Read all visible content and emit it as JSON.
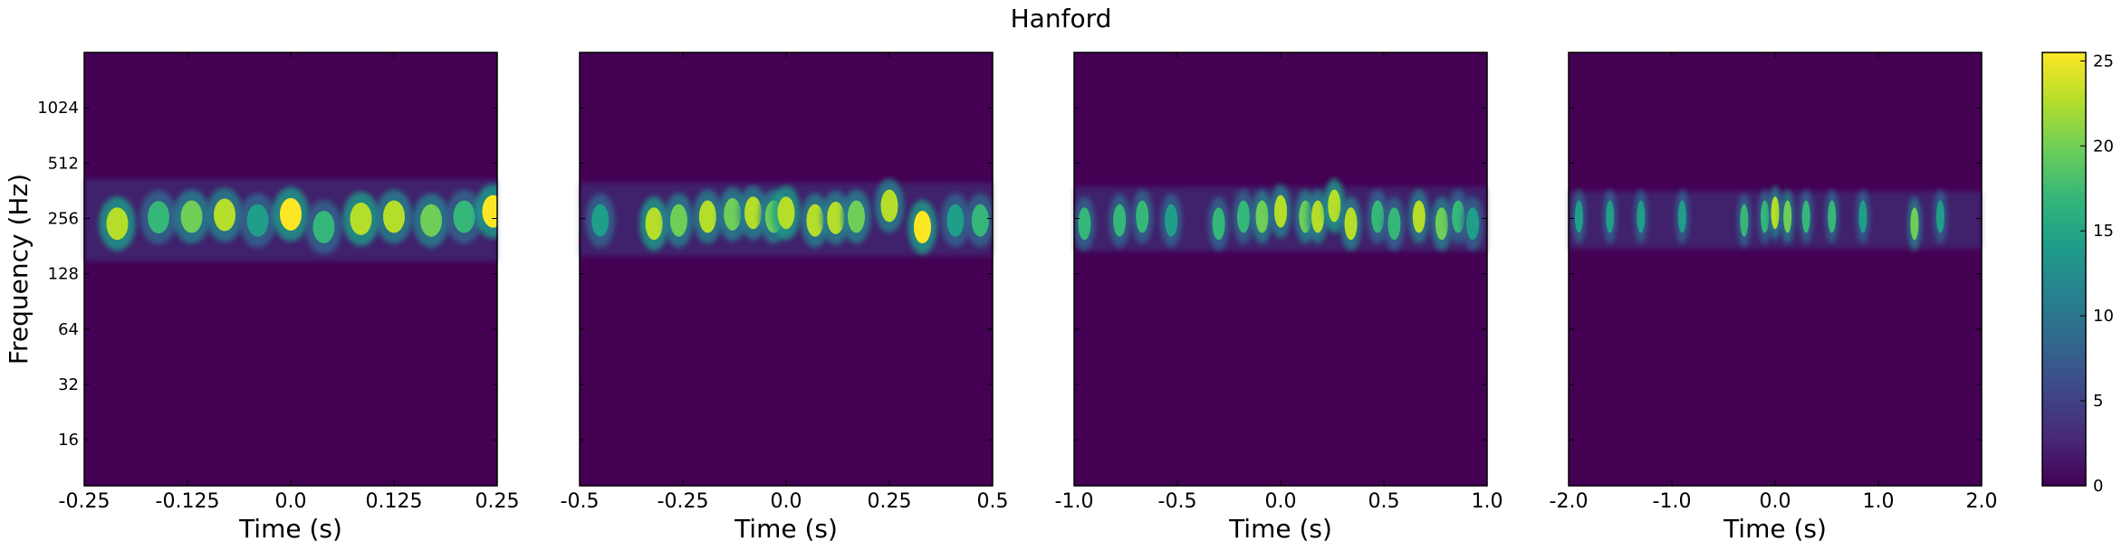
{
  "chart_data": {
    "type": "heatmap",
    "title": "Hanford",
    "ylabel": "Frequency (Hz)",
    "yscale": "log2",
    "ylim": [
      9,
      2048
    ],
    "yticks": [
      16,
      32,
      64,
      128,
      256,
      512,
      1024
    ],
    "colormap": [
      "#440154",
      "#482878",
      "#3e4989",
      "#31688e",
      "#26828e",
      "#1f9e89",
      "#35b779",
      "#6ece58",
      "#b5de2b",
      "#fde725"
    ],
    "colorbar": {
      "ticks": [
        0,
        5,
        10,
        15,
        20,
        25
      ],
      "range": [
        0,
        25.5
      ]
    },
    "panels": [
      {
        "xlabel": "Time (s)",
        "xlim": [
          -0.25,
          0.25
        ],
        "xticks": [
          "-0.25",
          "-0.125",
          "0.0",
          "0.125",
          "0.25"
        ],
        "band_hz": [
          150,
          420
        ],
        "peaks": [
          {
            "t": -0.21,
            "f": 240,
            "v": 24
          },
          {
            "t": -0.16,
            "f": 260,
            "v": 16
          },
          {
            "t": -0.12,
            "f": 262,
            "v": 20
          },
          {
            "t": -0.08,
            "f": 268,
            "v": 23
          },
          {
            "t": -0.04,
            "f": 250,
            "v": 14
          },
          {
            "t": 0.0,
            "f": 270,
            "v": 25
          },
          {
            "t": 0.04,
            "f": 230,
            "v": 16
          },
          {
            "t": 0.085,
            "f": 255,
            "v": 24
          },
          {
            "t": 0.125,
            "f": 262,
            "v": 23
          },
          {
            "t": 0.17,
            "f": 250,
            "v": 20
          },
          {
            "t": 0.21,
            "f": 262,
            "v": 16
          },
          {
            "t": 0.245,
            "f": 280,
            "v": 25
          }
        ]
      },
      {
        "xlabel": "Time (s)",
        "xlim": [
          -0.5,
          0.5
        ],
        "xticks": [
          "-0.5",
          "-0.25",
          "0.0",
          "0.25",
          "0.5"
        ],
        "band_hz": [
          160,
          400
        ],
        "peaks": [
          {
            "t": -0.45,
            "f": 250,
            "v": 14
          },
          {
            "t": -0.32,
            "f": 240,
            "v": 24
          },
          {
            "t": -0.26,
            "f": 250,
            "v": 20
          },
          {
            "t": -0.19,
            "f": 262,
            "v": 22
          },
          {
            "t": -0.13,
            "f": 270,
            "v": 20
          },
          {
            "t": -0.08,
            "f": 275,
            "v": 22
          },
          {
            "t": -0.03,
            "f": 262,
            "v": 20
          },
          {
            "t": 0.0,
            "f": 275,
            "v": 24
          },
          {
            "t": 0.07,
            "f": 250,
            "v": 22
          },
          {
            "t": 0.12,
            "f": 258,
            "v": 23
          },
          {
            "t": 0.17,
            "f": 262,
            "v": 19
          },
          {
            "t": 0.25,
            "f": 300,
            "v": 22
          },
          {
            "t": 0.33,
            "f": 230,
            "v": 25
          },
          {
            "t": 0.41,
            "f": 250,
            "v": 15
          },
          {
            "t": 0.47,
            "f": 250,
            "v": 17
          }
        ]
      },
      {
        "xlabel": "Time (s)",
        "xlim": [
          -1.0,
          1.0
        ],
        "xticks": [
          "-1.0",
          "-0.5",
          "0.0",
          "0.5",
          "1.0"
        ],
        "band_hz": [
          170,
          380
        ],
        "peaks": [
          {
            "t": -0.95,
            "f": 240,
            "v": 16
          },
          {
            "t": -0.78,
            "f": 250,
            "v": 17
          },
          {
            "t": -0.67,
            "f": 262,
            "v": 18
          },
          {
            "t": -0.53,
            "f": 250,
            "v": 15
          },
          {
            "t": -0.3,
            "f": 240,
            "v": 16
          },
          {
            "t": -0.18,
            "f": 262,
            "v": 18
          },
          {
            "t": -0.09,
            "f": 262,
            "v": 19
          },
          {
            "t": 0.0,
            "f": 280,
            "v": 23
          },
          {
            "t": 0.12,
            "f": 262,
            "v": 20
          },
          {
            "t": 0.18,
            "f": 262,
            "v": 22
          },
          {
            "t": 0.26,
            "f": 300,
            "v": 24
          },
          {
            "t": 0.34,
            "f": 240,
            "v": 22
          },
          {
            "t": 0.47,
            "f": 262,
            "v": 16
          },
          {
            "t": 0.55,
            "f": 240,
            "v": 17
          },
          {
            "t": 0.67,
            "f": 262,
            "v": 22
          },
          {
            "t": 0.78,
            "f": 240,
            "v": 20
          },
          {
            "t": 0.86,
            "f": 262,
            "v": 16
          },
          {
            "t": 0.93,
            "f": 240,
            "v": 14
          }
        ]
      },
      {
        "xlabel": "Time (s)",
        "xlim": [
          -2.0,
          2.0
        ],
        "xticks": [
          "-2.0",
          "-1.0",
          "0.0",
          "1.0",
          "2.0"
        ],
        "band_hz": [
          175,
          360
        ],
        "peaks": [
          {
            "t": -1.9,
            "f": 262,
            "v": 13
          },
          {
            "t": -1.6,
            "f": 262,
            "v": 14
          },
          {
            "t": -1.3,
            "f": 262,
            "v": 13
          },
          {
            "t": -0.9,
            "f": 262,
            "v": 13
          },
          {
            "t": -0.3,
            "f": 250,
            "v": 16
          },
          {
            "t": -0.1,
            "f": 262,
            "v": 18
          },
          {
            "t": 0.0,
            "f": 275,
            "v": 22
          },
          {
            "t": 0.12,
            "f": 262,
            "v": 20
          },
          {
            "t": 0.3,
            "f": 262,
            "v": 18
          },
          {
            "t": 0.55,
            "f": 262,
            "v": 17
          },
          {
            "t": 0.85,
            "f": 262,
            "v": 15
          },
          {
            "t": 1.35,
            "f": 240,
            "v": 20
          },
          {
            "t": 1.6,
            "f": 262,
            "v": 14
          }
        ]
      }
    ]
  }
}
